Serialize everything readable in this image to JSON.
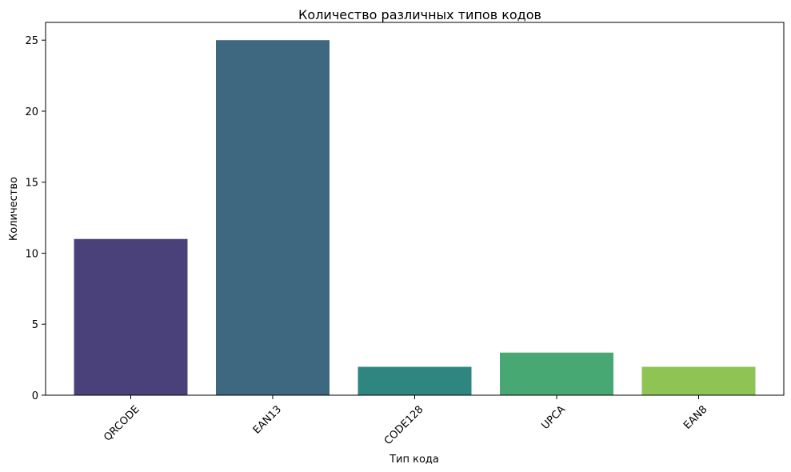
{
  "chart_data": {
    "type": "bar",
    "title": "Количество различных типов кодов",
    "xlabel": "Тип кода",
    "ylabel": "Количество",
    "categories": [
      "QRCODE",
      "EAN13",
      "CODE128",
      "UPCA",
      "EAN8"
    ],
    "values": [
      11,
      25,
      2,
      3,
      2
    ],
    "colors": [
      "#4a417a",
      "#3e6880",
      "#2f8680",
      "#48a873",
      "#8dc454"
    ],
    "ylim": [
      0,
      26.25
    ],
    "yticks": [
      0,
      5,
      10,
      15,
      20,
      25
    ],
    "grid": false,
    "legend": "none"
  }
}
